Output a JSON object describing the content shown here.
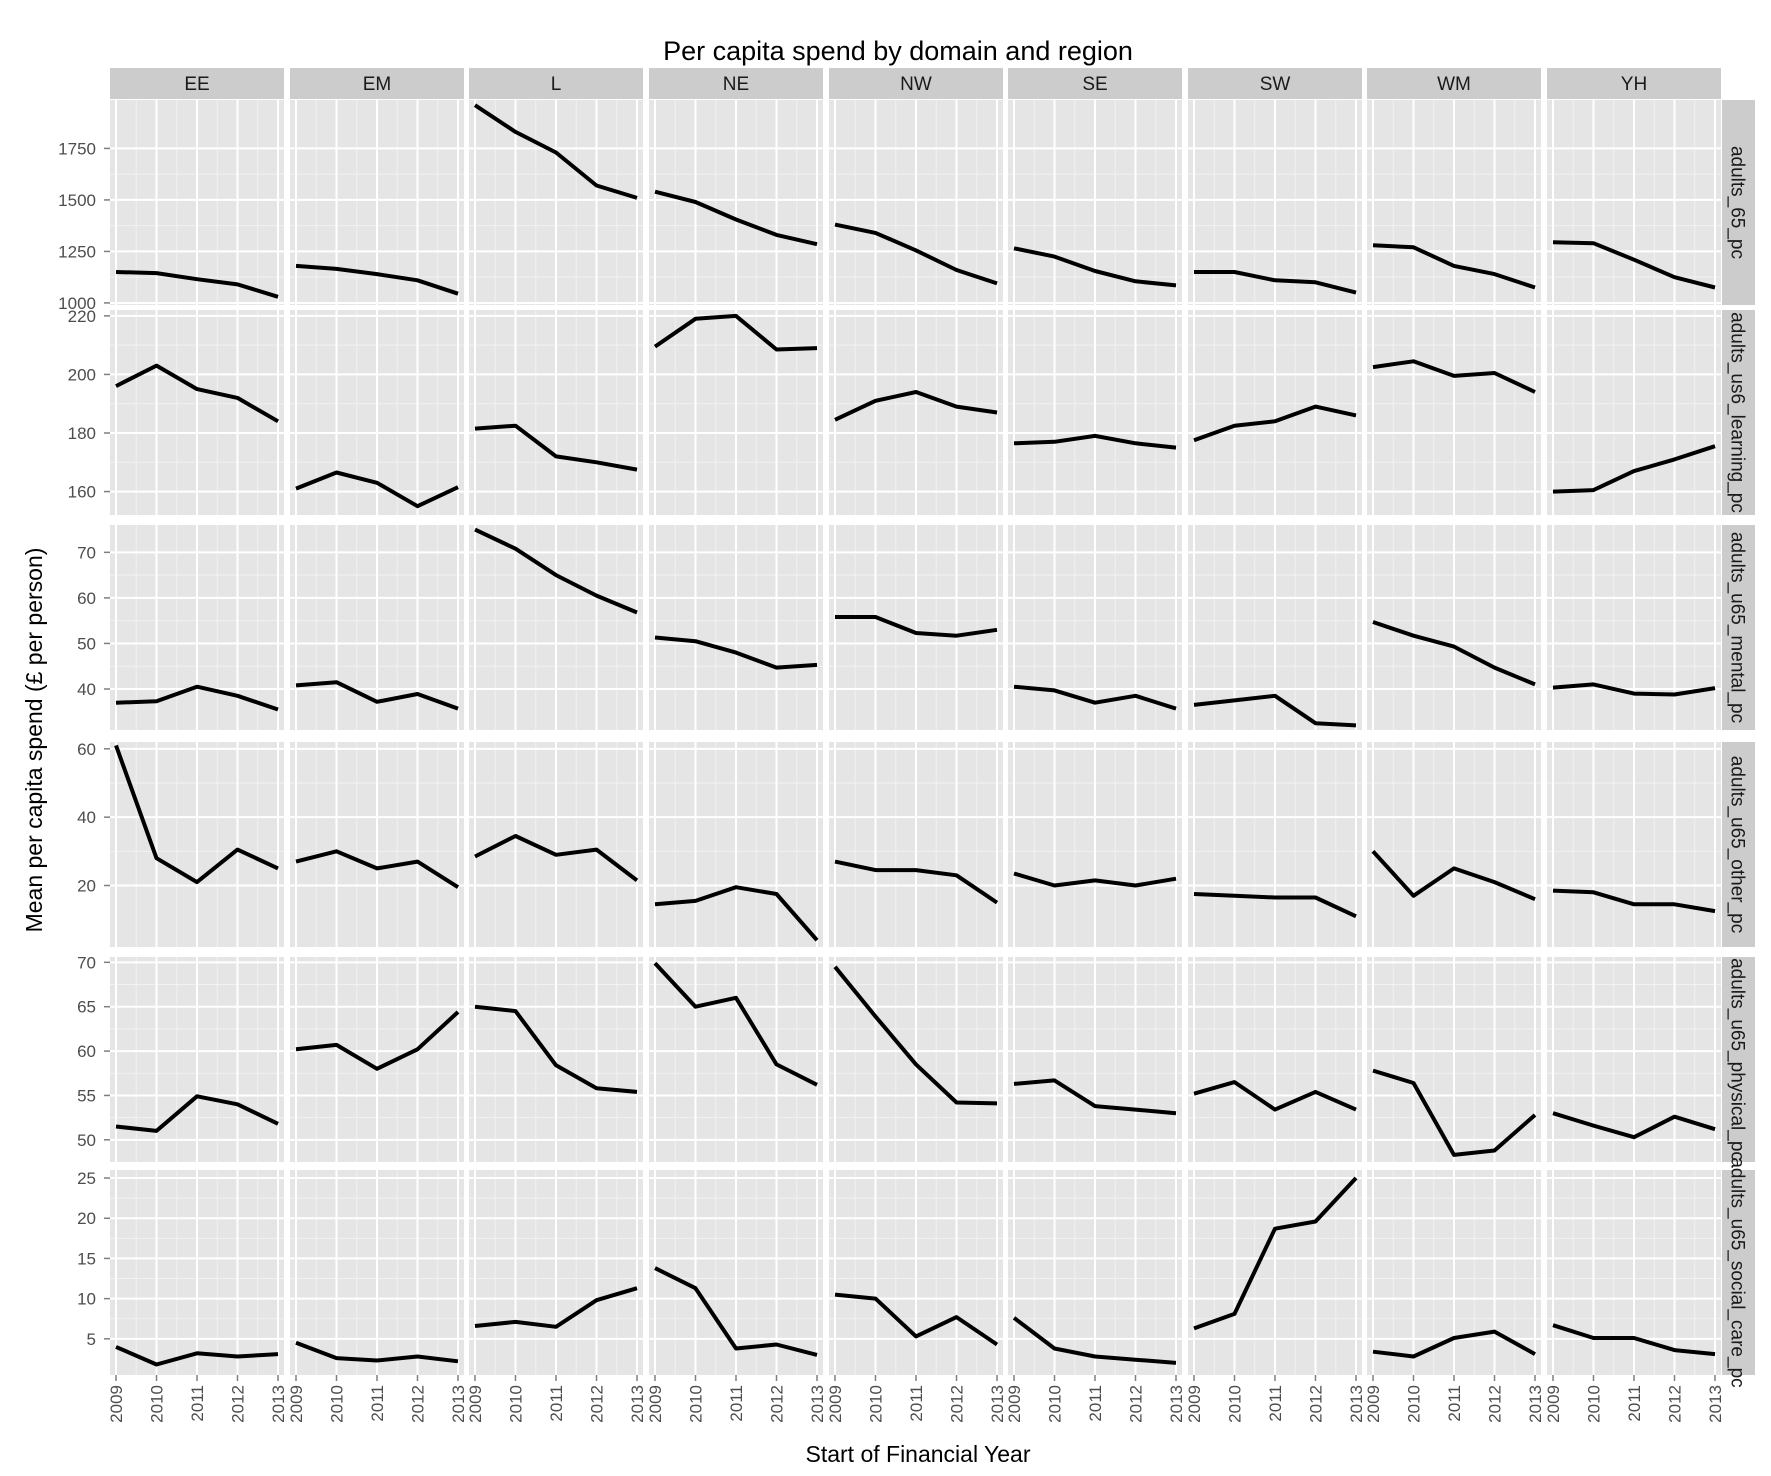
{
  "chart_data": {
    "type": "line",
    "title": "Per capita spend by domain and region",
    "xlabel": "Start of Financial Year",
    "ylabel": "Mean per capita spend (£ per person)",
    "x": [
      2009,
      2010,
      2011,
      2012,
      2013
    ],
    "x_tick_labels": [
      "2009",
      "2010",
      "2011",
      "2012",
      "2013"
    ],
    "grid": true,
    "facet_cols": [
      "EE",
      "EM",
      "L",
      "NE",
      "NW",
      "SE",
      "SW",
      "WM",
      "YH"
    ],
    "facet_rows": [
      {
        "name": "adults_65_pc",
        "ylim": [
          990,
          1985
        ],
        "y_ticks": [
          1000,
          1250,
          1500,
          1750
        ],
        "y_tick_labels": [
          "1000",
          "1250",
          "1500",
          "1750"
        ],
        "series": [
          {
            "region": "EE",
            "values": [
              1150,
              1145,
              1115,
              1090,
              1030
            ]
          },
          {
            "region": "EM",
            "values": [
              1180,
              1165,
              1140,
              1110,
              1045
            ]
          },
          {
            "region": "L",
            "values": [
              1960,
              1830,
              1730,
              1570,
              1510
            ]
          },
          {
            "region": "NE",
            "values": [
              1540,
              1490,
              1405,
              1330,
              1285
            ]
          },
          {
            "region": "NW",
            "values": [
              1380,
              1340,
              1255,
              1160,
              1095
            ]
          },
          {
            "region": "SE",
            "values": [
              1265,
              1225,
              1155,
              1105,
              1085
            ]
          },
          {
            "region": "SW",
            "values": [
              1150,
              1150,
              1110,
              1100,
              1050
            ]
          },
          {
            "region": "WM",
            "values": [
              1280,
              1270,
              1180,
              1140,
              1075
            ]
          },
          {
            "region": "YH",
            "values": [
              1295,
              1290,
              1210,
              1125,
              1075
            ]
          }
        ]
      },
      {
        "name": "adults_us6_learning_pc",
        "ylim": [
          152,
          222
        ],
        "y_ticks": [
          160,
          180,
          200,
          220
        ],
        "y_tick_labels": [
          "160",
          "180",
          "200",
          "220"
        ],
        "series": [
          {
            "region": "EE",
            "values": [
              196,
              203,
              195,
              192,
              184
            ]
          },
          {
            "region": "EM",
            "values": [
              161,
              166.5,
              163,
              155,
              161.5
            ]
          },
          {
            "region": "L",
            "values": [
              181.5,
              182.5,
              172,
              170,
              167.5
            ]
          },
          {
            "region": "NE",
            "values": [
              209.5,
              219,
              220,
              208.5,
              209
            ]
          },
          {
            "region": "NW",
            "values": [
              184.5,
              191,
              194,
              189,
              187
            ]
          },
          {
            "region": "SE",
            "values": [
              176.5,
              177,
              179,
              176.5,
              175
            ]
          },
          {
            "region": "SW",
            "values": [
              177.5,
              182.5,
              184,
              189,
              186
            ]
          },
          {
            "region": "WM",
            "values": [
              202.5,
              204.5,
              199.5,
              200.5,
              194
            ]
          },
          {
            "region": "YH",
            "values": [
              160,
              160.5,
              167,
              171,
              175.5
            ]
          }
        ]
      },
      {
        "name": "adults_u65_mental_pc",
        "ylim": [
          31,
          76
        ],
        "y_ticks": [
          40,
          50,
          60,
          70
        ],
        "y_tick_labels": [
          "40",
          "50",
          "60",
          "70"
        ],
        "series": [
          {
            "region": "EE",
            "values": [
              37,
              37.3,
              40.5,
              38.5,
              35.5
            ]
          },
          {
            "region": "EM",
            "values": [
              40.8,
              41.5,
              37.2,
              38.9,
              35.7
            ]
          },
          {
            "region": "L",
            "values": [
              75,
              70.8,
              65,
              60.5,
              56.8
            ]
          },
          {
            "region": "NE",
            "values": [
              51.3,
              50.5,
              48,
              44.7,
              45.3
            ]
          },
          {
            "region": "NW",
            "values": [
              55.8,
              55.8,
              52.3,
              51.7,
              53
            ]
          },
          {
            "region": "SE",
            "values": [
              40.5,
              39.7,
              37,
              38.5,
              35.7
            ]
          },
          {
            "region": "SW",
            "values": [
              36.5,
              37.5,
              38.5,
              32.5,
              32
            ]
          },
          {
            "region": "WM",
            "values": [
              54.7,
              51.7,
              49.3,
              44.7,
              41
            ]
          },
          {
            "region": "YH",
            "values": [
              40.3,
              41,
              39,
              38.8,
              40.2
            ]
          }
        ]
      },
      {
        "name": "adults_u65_other_pc",
        "ylim": [
          2,
          62
        ],
        "y_ticks": [
          20,
          40,
          60
        ],
        "y_tick_labels": [
          "20",
          "40",
          "60"
        ],
        "series": [
          {
            "region": "EE",
            "values": [
              61,
              28,
              21,
              30.5,
              25
            ]
          },
          {
            "region": "EM",
            "values": [
              27,
              30,
              25,
              27,
              19.5
            ]
          },
          {
            "region": "L",
            "values": [
              28.5,
              34.5,
              29,
              30.5,
              21.5
            ]
          },
          {
            "region": "NE",
            "values": [
              14.5,
              15.5,
              19.5,
              17.5,
              4
            ]
          },
          {
            "region": "NW",
            "values": [
              27,
              24.5,
              24.5,
              23,
              15
            ]
          },
          {
            "region": "SE",
            "values": [
              23.5,
              20,
              21.5,
              20,
              22
            ]
          },
          {
            "region": "SW",
            "values": [
              17.5,
              17,
              16.5,
              16.5,
              11
            ]
          },
          {
            "region": "WM",
            "values": [
              30,
              17,
              25,
              21,
              16
            ]
          },
          {
            "region": "YH",
            "values": [
              18.5,
              18,
              14.5,
              14.5,
              12.5
            ]
          }
        ]
      },
      {
        "name": "adults_u65_physical_pc",
        "ylim": [
          47.5,
          70.6
        ],
        "y_ticks": [
          50,
          55,
          60,
          65,
          70
        ],
        "y_tick_labels": [
          "50",
          "55",
          "60",
          "65",
          "70"
        ],
        "series": [
          {
            "region": "EE",
            "values": [
              51.5,
              51,
              54.9,
              54,
              51.8
            ]
          },
          {
            "region": "EM",
            "values": [
              60.2,
              60.7,
              58,
              60.2,
              64.4
            ]
          },
          {
            "region": "L",
            "values": [
              65,
              64.5,
              58.4,
              55.8,
              55.4
            ]
          },
          {
            "region": "NE",
            "values": [
              69.9,
              65,
              66,
              58.5,
              56.2
            ]
          },
          {
            "region": "NW",
            "values": [
              69.5,
              63.9,
              58.5,
              54.2,
              54.1
            ]
          },
          {
            "region": "SE",
            "values": [
              56.3,
              56.7,
              53.8,
              53.4,
              53
            ]
          },
          {
            "region": "SW",
            "values": [
              55.2,
              56.5,
              53.4,
              55.4,
              53.4
            ]
          },
          {
            "region": "WM",
            "values": [
              57.8,
              56.4,
              48.3,
              48.8,
              52.8
            ]
          },
          {
            "region": "YH",
            "values": [
              53,
              51.6,
              50.3,
              52.6,
              51.2
            ]
          }
        ]
      },
      {
        "name": "adults_u65_social_care_pc",
        "ylim": [
          0.5,
          26
        ],
        "y_ticks": [
          5,
          10,
          15,
          20,
          25
        ],
        "y_tick_labels": [
          "5",
          "10",
          "15",
          "20",
          "25"
        ],
        "series": [
          {
            "region": "EE",
            "values": [
              4,
              1.8,
              3.2,
              2.8,
              3.1
            ]
          },
          {
            "region": "EM",
            "values": [
              4.5,
              2.6,
              2.3,
              2.8,
              2.2
            ]
          },
          {
            "region": "L",
            "values": [
              6.6,
              7.1,
              6.5,
              9.8,
              11.3
            ]
          },
          {
            "region": "NE",
            "values": [
              13.8,
              11.3,
              3.8,
              4.3,
              3
            ]
          },
          {
            "region": "NW",
            "values": [
              10.5,
              10,
              5.3,
              7.7,
              4.3
            ]
          },
          {
            "region": "SE",
            "values": [
              7.6,
              3.8,
              2.8,
              2.4,
              2
            ]
          },
          {
            "region": "SW",
            "values": [
              6.3,
              8.1,
              18.7,
              19.6,
              25
            ]
          },
          {
            "region": "WM",
            "values": [
              3.4,
              2.8,
              5.1,
              5.9,
              3.1
            ]
          },
          {
            "region": "YH",
            "values": [
              6.7,
              5.1,
              5.1,
              3.6,
              3.1
            ]
          }
        ]
      }
    ]
  },
  "row_strip_labels": [
    "adults_65_pc",
    "adults_us6_learning_pc",
    "adults_u65_mental_pc",
    "adults_u65_other_pc",
    "adults_u65_physical_pc",
    "adults_u65_social_care_pc"
  ],
  "colors": {
    "panel_bg": "#e5e5e5",
    "strip_bg": "#cccccc",
    "grid_major": "#ffffff",
    "grid_minor": "#f2f2f2",
    "line": "#000000",
    "tick_text": "#4d4d4d"
  }
}
